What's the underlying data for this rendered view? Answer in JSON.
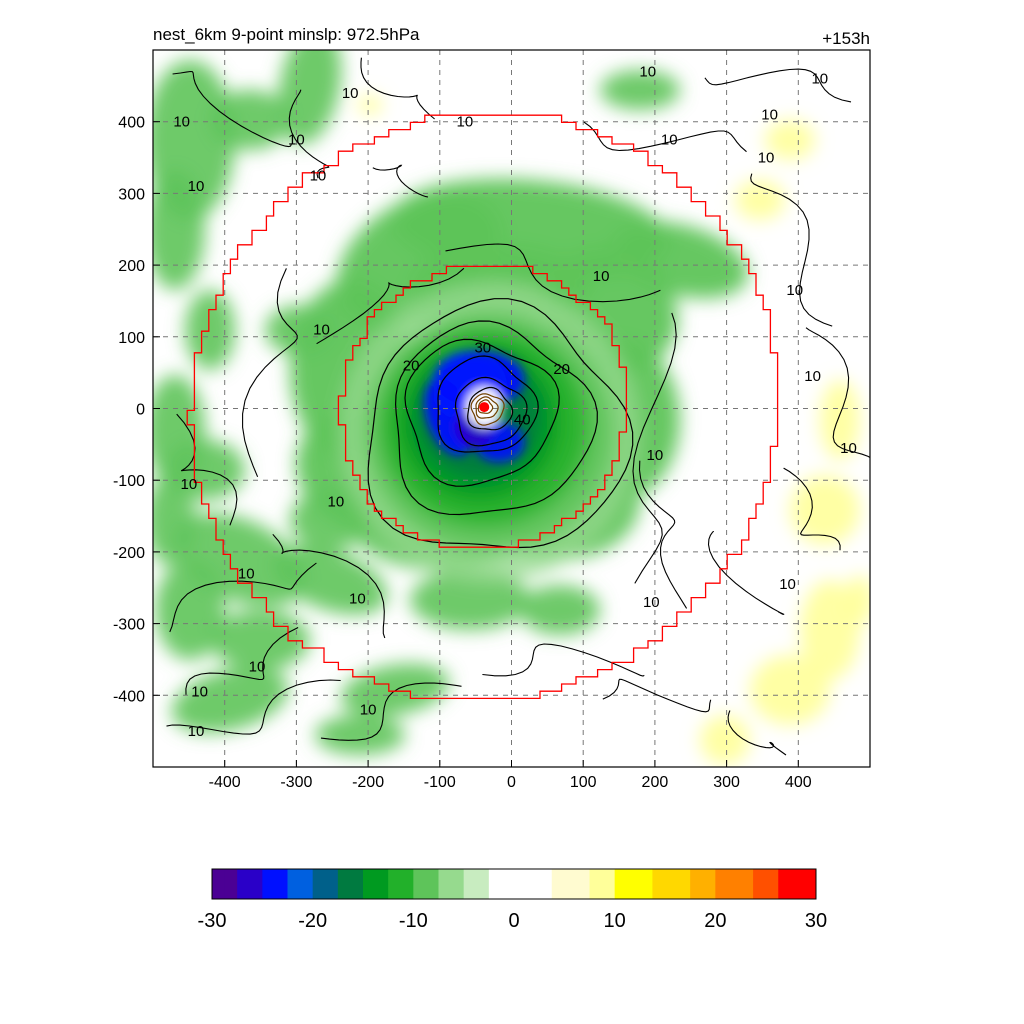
{
  "header": {
    "title_left": "nest_6km  9-point minslp: 972.5hPa",
    "title_right": "+153h"
  },
  "chart_data": {
    "type": "heatmap",
    "title": "nest_6km  9-point minslp: 972.5hPa",
    "forecast_hour_label": "+153h",
    "xlim": [
      -500,
      500
    ],
    "ylim": [
      -500,
      500
    ],
    "x_ticks": [
      -400,
      -300,
      -200,
      -100,
      0,
      100,
      200,
      300,
      400
    ],
    "y_ticks": [
      -400,
      -300,
      -200,
      -100,
      0,
      100,
      200,
      300,
      400
    ],
    "grid": true,
    "storm_center": {
      "x": -38,
      "y": 2,
      "color": "#ff0000"
    },
    "shading": {
      "colorbar_range": [
        -30,
        30
      ],
      "colorbar_ticks": [
        -30,
        -20,
        -10,
        0,
        10,
        20,
        30
      ],
      "negative_colors": [
        "#4b0094",
        "#2a00c8",
        "#0010ff",
        "#0060e0",
        "#00608a",
        "#007a40",
        "#009a20",
        "#22b02a",
        "#5ec45a",
        "#96da8e",
        "#c8ecc0"
      ],
      "neutral_color": "#ffffff",
      "positive_colors": [
        "#fffbd0",
        "#ffff9a",
        "#ffff00",
        "#ffd800",
        "#ffb000",
        "#ff8000",
        "#ff5000",
        "#ff0000"
      ]
    },
    "contour_levels": [
      10,
      20,
      30,
      40
    ],
    "contour_labels": [
      {
        "text": "10",
        "x": -460,
        "y": 400
      },
      {
        "text": "10",
        "x": -440,
        "y": 310
      },
      {
        "text": "10",
        "x": -225,
        "y": 440
      },
      {
        "text": "10",
        "x": -300,
        "y": 375
      },
      {
        "text": "10",
        "x": -270,
        "y": 325
      },
      {
        "text": "10",
        "x": -65,
        "y": 400
      },
      {
        "text": "10",
        "x": 190,
        "y": 470
      },
      {
        "text": "10",
        "x": 220,
        "y": 375
      },
      {
        "text": "10",
        "x": 360,
        "y": 410
      },
      {
        "text": "10",
        "x": 430,
        "y": 460
      },
      {
        "text": "10",
        "x": 355,
        "y": 350
      },
      {
        "text": "10",
        "x": 125,
        "y": 185
      },
      {
        "text": "10",
        "x": -265,
        "y": 110
      },
      {
        "text": "10",
        "x": 395,
        "y": 165
      },
      {
        "text": "10",
        "x": 420,
        "y": 45
      },
      {
        "text": "10",
        "x": 470,
        "y": -55
      },
      {
        "text": "10",
        "x": 200,
        "y": -65
      },
      {
        "text": "10",
        "x": -245,
        "y": -130
      },
      {
        "text": "10",
        "x": -450,
        "y": -105
      },
      {
        "text": "10",
        "x": -370,
        "y": -230
      },
      {
        "text": "10",
        "x": -215,
        "y": -265
      },
      {
        "text": "10",
        "x": 195,
        "y": -270
      },
      {
        "text": "10",
        "x": 385,
        "y": -245
      },
      {
        "text": "10",
        "x": -355,
        "y": -360
      },
      {
        "text": "10",
        "x": -435,
        "y": -395
      },
      {
        "text": "10",
        "x": -200,
        "y": -420
      },
      {
        "text": "10",
        "x": -440,
        "y": -450
      },
      {
        "text": "20",
        "x": -140,
        "y": 60
      },
      {
        "text": "20",
        "x": 70,
        "y": 55
      },
      {
        "text": "30",
        "x": -40,
        "y": 85
      },
      {
        "text": "40",
        "x": 15,
        "y": -15
      }
    ],
    "boundaries": [
      {
        "name": "outer",
        "color": "#ff0000",
        "radius_km": 410
      },
      {
        "name": "inner",
        "color": "#ff0000",
        "radius_km": 200
      }
    ]
  },
  "colorbar": {
    "tick_labels": [
      "-30",
      "-20",
      "-10",
      "0",
      "10",
      "20",
      "30"
    ]
  }
}
